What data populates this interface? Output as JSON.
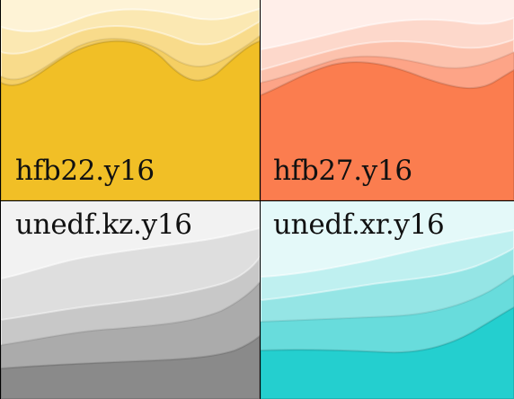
{
  "tiles": [
    {
      "label": "hfb22.y16",
      "palette": [
        "#fef3d6",
        "#fbe8b2",
        "#f8db8b",
        "#f5cf63",
        "#f1bf26"
      ]
    },
    {
      "label": "hfb27.y16",
      "palette": [
        "#ffeee9",
        "#fdd8cb",
        "#fcc2ad",
        "#fda487",
        "#fb7d4f"
      ]
    },
    {
      "label": "unedf.kz.y16",
      "palette": [
        "#f2f2f2",
        "#dedede",
        "#c8c8c8",
        "#ababab",
        "#8a8a8a"
      ]
    },
    {
      "label": "unedf.xr.y16",
      "palette": [
        "#e4f9f9",
        "#bff0f0",
        "#95e5e5",
        "#68dcdc",
        "#24cfcf"
      ]
    }
  ]
}
